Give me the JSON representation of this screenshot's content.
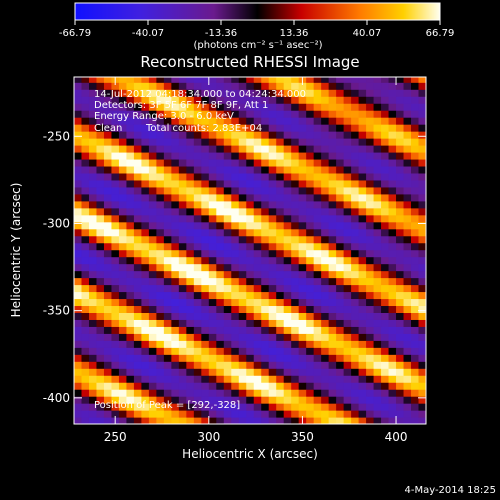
{
  "chart_data": {
    "type": "heatmap",
    "title": "Reconstructed RHESSI Image",
    "xlabel": "Heliocentric X (arcsec)",
    "ylabel": "Heliocentric Y (arcsec)",
    "xlim": [
      228,
      416
    ],
    "ylim": [
      -415,
      -216
    ],
    "x_ticks": [
      250,
      300,
      350,
      400
    ],
    "x_tick_labels": [
      "250",
      "300",
      "350",
      "400"
    ],
    "y_ticks": [
      -250,
      -300,
      -350,
      -400
    ],
    "y_tick_labels": [
      "-250",
      "-300",
      "-350",
      "-400"
    ],
    "colorbar": {
      "min": -66.79,
      "max": 66.79,
      "tick_labels": [
        "-66.79",
        "-40.07",
        "-13.36",
        "13.36",
        "40.07",
        "66.79"
      ],
      "tick_values": [
        -66.79,
        -40.07,
        -13.36,
        13.36,
        40.07,
        66.79
      ],
      "units": "(photons cm⁻² s⁻¹ asec⁻²)"
    },
    "annotations": [
      "14-Jul-2012 04:18:34.000 to 04:24:34.000",
      "Detectors: 3F 5F 6F 7F 8F 9F, Att 1",
      "Energy Range: 3.0 - 6.0 keV",
      "Clean",
      "Total counts: 2.83E+04"
    ],
    "peak_label": "Position of Peak = [292,-328]",
    "peak": [
      292,
      -328
    ],
    "footer": "4-May-2014 18:25"
  }
}
